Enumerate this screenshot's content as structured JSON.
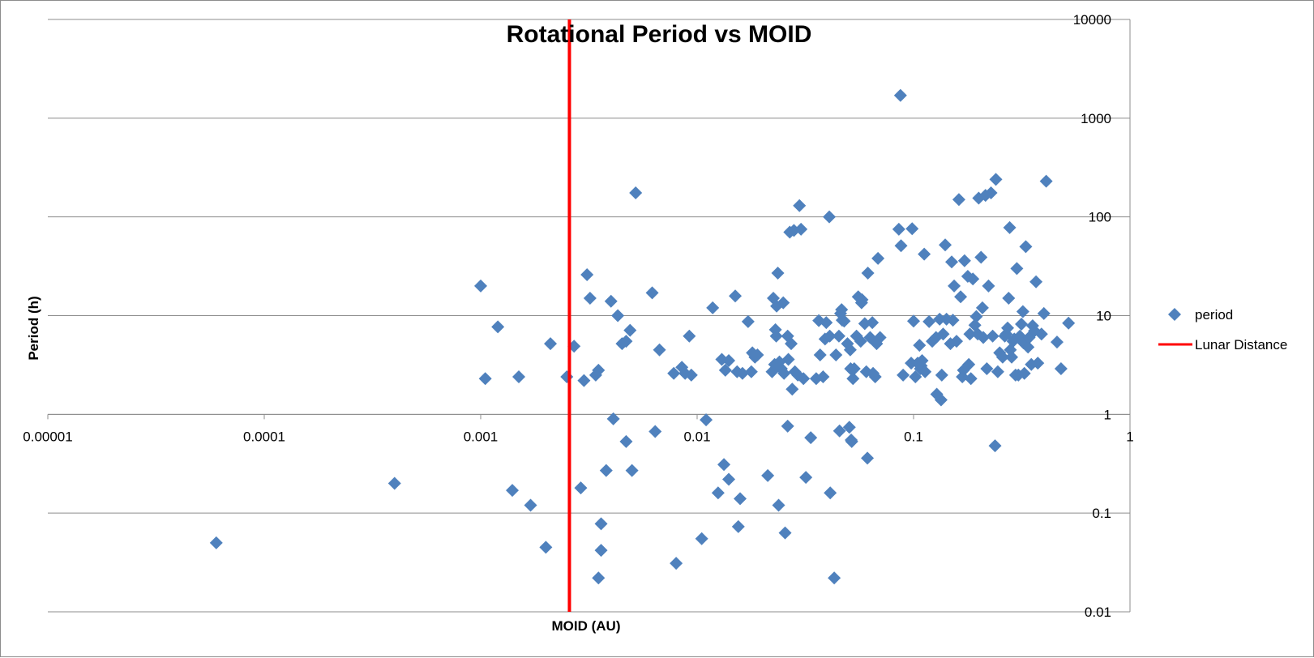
{
  "chart_data": {
    "type": "scatter",
    "title": "Rotational Period vs MOID",
    "xlabel": "MOID (AU)",
    "ylabel": "Period (h)",
    "x_scale": "log",
    "y_scale": "log",
    "xlim": [
      1e-05,
      1
    ],
    "ylim": [
      0.01,
      10000
    ],
    "x_ticks": [
      "0.00001",
      "0.0001",
      "0.001",
      "0.01",
      "0.1",
      "1"
    ],
    "y_ticks": [
      "0.01",
      "0.1",
      "1",
      "10",
      "100",
      "1000",
      "10000"
    ],
    "grid": "horizontal",
    "legend_position": "right",
    "series": [
      {
        "name": "period",
        "marker": "diamond",
        "color": "#4f81bd",
        "points": [
          [
            6e-05,
            0.05
          ],
          [
            0.0004,
            0.2
          ],
          [
            0.001,
            20
          ],
          [
            0.00105,
            2.3
          ],
          [
            0.0012,
            7.7
          ],
          [
            0.0014,
            0.17
          ],
          [
            0.0015,
            2.4
          ],
          [
            0.0017,
            0.12
          ],
          [
            0.002,
            0.045
          ],
          [
            0.0021,
            5.2
          ],
          [
            0.0025,
            2.4
          ],
          [
            0.0027,
            4.9
          ],
          [
            0.0029,
            0.18
          ],
          [
            0.003,
            2.2
          ],
          [
            0.0031,
            26
          ],
          [
            0.0032,
            15
          ],
          [
            0.0034,
            2.5
          ],
          [
            0.0035,
            2.8
          ],
          [
            0.0036,
            0.078
          ],
          [
            0.0036,
            0.042
          ],
          [
            0.0035,
            0.022
          ],
          [
            0.0038,
            0.27
          ],
          [
            0.004,
            14
          ],
          [
            0.0041,
            0.9
          ],
          [
            0.0043,
            10
          ],
          [
            0.0045,
            5.2
          ],
          [
            0.0047,
            5.5
          ],
          [
            0.0047,
            0.53
          ],
          [
            0.0049,
            7.1
          ],
          [
            0.005,
            0.27
          ],
          [
            0.0052,
            175
          ],
          [
            0.0062,
            17
          ],
          [
            0.0064,
            0.67
          ],
          [
            0.0067,
            4.5
          ],
          [
            0.0078,
            2.6
          ],
          [
            0.008,
            0.031
          ],
          [
            0.0085,
            3
          ],
          [
            0.0088,
            2.6
          ],
          [
            0.0092,
            6.2
          ],
          [
            0.0094,
            2.5
          ],
          [
            0.0105,
            0.055
          ],
          [
            0.011,
            0.88
          ],
          [
            0.0118,
            12
          ],
          [
            0.0125,
            0.16
          ],
          [
            0.013,
            3.6
          ],
          [
            0.0133,
            0.31
          ],
          [
            0.0135,
            2.8
          ],
          [
            0.014,
            3.5
          ],
          [
            0.014,
            0.22
          ],
          [
            0.015,
            15.8
          ],
          [
            0.0153,
            2.7
          ],
          [
            0.0155,
            0.073
          ],
          [
            0.0158,
            0.14
          ],
          [
            0.0162,
            2.6
          ],
          [
            0.0172,
            8.7
          ],
          [
            0.0178,
            2.7
          ],
          [
            0.018,
            4.2
          ],
          [
            0.0185,
            3.8
          ],
          [
            0.019,
            4
          ],
          [
            0.0212,
            0.24
          ],
          [
            0.0222,
            2.7
          ],
          [
            0.0225,
            15
          ],
          [
            0.0228,
            3.2
          ],
          [
            0.023,
            7.2
          ],
          [
            0.0232,
            6.2
          ],
          [
            0.0233,
            12.5
          ],
          [
            0.0236,
            27
          ],
          [
            0.0238,
            0.12
          ],
          [
            0.024,
            3.4
          ],
          [
            0.0245,
            2.9
          ],
          [
            0.025,
            13.5
          ],
          [
            0.0252,
            2.6
          ],
          [
            0.0255,
            0.063
          ],
          [
            0.0262,
            6.2
          ],
          [
            0.0262,
            0.76
          ],
          [
            0.0264,
            3.6
          ],
          [
            0.0268,
            70
          ],
          [
            0.0272,
            5.2
          ],
          [
            0.0275,
            1.8
          ],
          [
            0.028,
            73
          ],
          [
            0.0283,
            2.7
          ],
          [
            0.0292,
            2.5
          ],
          [
            0.0297,
            130
          ],
          [
            0.0302,
            75
          ],
          [
            0.031,
            2.3
          ],
          [
            0.0318,
            0.23
          ],
          [
            0.0335,
            0.58
          ],
          [
            0.0355,
            2.3
          ],
          [
            0.0365,
            8.9
          ],
          [
            0.037,
            4
          ],
          [
            0.0382,
            2.4
          ],
          [
            0.039,
            5.8
          ],
          [
            0.0395,
            8.5
          ],
          [
            0.0408,
            100
          ],
          [
            0.041,
            6.2
          ],
          [
            0.0412,
            0.16
          ],
          [
            0.043,
            0.022
          ],
          [
            0.0438,
            4
          ],
          [
            0.0452,
            6.2
          ],
          [
            0.0455,
            0.68
          ],
          [
            0.046,
            10.5
          ],
          [
            0.0465,
            11.5
          ],
          [
            0.0468,
            9
          ],
          [
            0.0478,
            8.8
          ],
          [
            0.0495,
            5.2
          ],
          [
            0.0505,
            0.74
          ],
          [
            0.051,
            4.5
          ],
          [
            0.0512,
            2.9
          ],
          [
            0.0515,
            0.55
          ],
          [
            0.0518,
            0.53
          ],
          [
            0.0525,
            2.3
          ],
          [
            0.0532,
            2.9
          ],
          [
            0.0545,
            6.2
          ],
          [
            0.0555,
            15.5
          ],
          [
            0.057,
            5.5
          ],
          [
            0.0575,
            13.5
          ],
          [
            0.0578,
            14.5
          ],
          [
            0.0595,
            8.3
          ],
          [
            0.0605,
            2.7
          ],
          [
            0.0612,
            0.36
          ],
          [
            0.0615,
            27
          ],
          [
            0.063,
            6
          ],
          [
            0.0645,
            8.5
          ],
          [
            0.065,
            2.6
          ],
          [
            0.0665,
            2.4
          ],
          [
            0.0675,
            5.2
          ],
          [
            0.0685,
            38
          ],
          [
            0.07,
            6
          ],
          [
            0.0855,
            75
          ],
          [
            0.087,
            1700
          ],
          [
            0.0875,
            51
          ],
          [
            0.0895,
            2.5
          ],
          [
            0.0975,
            3.3
          ],
          [
            0.0985,
            76
          ],
          [
            0.1,
            8.8
          ],
          [
            0.102,
            2.4
          ],
          [
            0.1045,
            3.3
          ],
          [
            0.1065,
            5
          ],
          [
            0.1075,
            2.9
          ],
          [
            0.1085,
            3.1
          ],
          [
            0.1095,
            3.5
          ],
          [
            0.112,
            42
          ],
          [
            0.113,
            2.7
          ],
          [
            0.118,
            8.7
          ],
          [
            0.122,
            5.5
          ],
          [
            0.127,
            6
          ],
          [
            0.128,
            1.6
          ],
          [
            0.132,
            9.2
          ],
          [
            0.134,
            1.4
          ],
          [
            0.135,
            2.5
          ],
          [
            0.137,
            6.5
          ],
          [
            0.14,
            52
          ],
          [
            0.142,
            9.2
          ],
          [
            0.148,
            5.2
          ],
          [
            0.15,
            35
          ],
          [
            0.152,
            9
          ],
          [
            0.154,
            20
          ],
          [
            0.158,
            5.5
          ],
          [
            0.162,
            150
          ],
          [
            0.165,
            15.5
          ],
          [
            0.168,
            2.4
          ],
          [
            0.17,
            2.8
          ],
          [
            0.172,
            36
          ],
          [
            0.178,
            25
          ],
          [
            0.18,
            3.2
          ],
          [
            0.182,
            6.5
          ],
          [
            0.184,
            2.3
          ],
          [
            0.188,
            23.5
          ],
          [
            0.192,
            8
          ],
          [
            0.195,
            9.8
          ],
          [
            0.198,
            6.5
          ],
          [
            0.2,
            155
          ],
          [
            0.205,
            39
          ],
          [
            0.208,
            12
          ],
          [
            0.21,
            6
          ],
          [
            0.215,
            165
          ],
          [
            0.218,
            2.9
          ],
          [
            0.222,
            20
          ],
          [
            0.228,
            175
          ],
          [
            0.232,
            6.2
          ],
          [
            0.238,
            0.48
          ],
          [
            0.24,
            240
          ],
          [
            0.245,
            2.7
          ],
          [
            0.25,
            4.2
          ],
          [
            0.258,
            3.8
          ],
          [
            0.264,
            6.2
          ],
          [
            0.268,
            6.5
          ],
          [
            0.272,
            7.5
          ],
          [
            0.275,
            15
          ],
          [
            0.278,
            78
          ],
          [
            0.28,
            4.5
          ],
          [
            0.284,
            3.8
          ],
          [
            0.288,
            5.5
          ],
          [
            0.292,
            5.8
          ],
          [
            0.296,
            2.5
          ],
          [
            0.3,
            30
          ],
          [
            0.305,
            2.5
          ],
          [
            0.31,
            6.2
          ],
          [
            0.315,
            8.2
          ],
          [
            0.32,
            11
          ],
          [
            0.322,
            5.3
          ],
          [
            0.325,
            2.6
          ],
          [
            0.33,
            50
          ],
          [
            0.338,
            4.8
          ],
          [
            0.342,
            6
          ],
          [
            0.35,
            3.2
          ],
          [
            0.355,
            7.9
          ],
          [
            0.362,
            7
          ],
          [
            0.368,
            22
          ],
          [
            0.375,
            3.3
          ],
          [
            0.39,
            6.5
          ],
          [
            0.4,
            10.5
          ],
          [
            0.41,
            230
          ],
          [
            0.46,
            5.4
          ],
          [
            0.48,
            2.9
          ],
          [
            0.52,
            8.4
          ]
        ]
      },
      {
        "name": "Lunar Distance",
        "type": "vertical_line",
        "color": "#ff0000",
        "x": 0.00257,
        "y_range": [
          0.01,
          10000
        ]
      }
    ]
  }
}
